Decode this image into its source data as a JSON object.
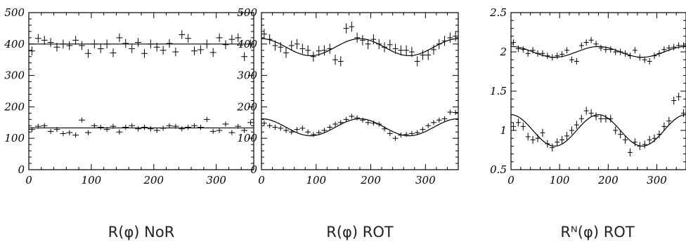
{
  "chart_data": [
    {
      "type": "scatter",
      "caption": "R(φ) NoR",
      "x_ticks": [
        "0",
        "100",
        "200",
        "300"
      ],
      "y_ticks": [
        "0",
        "100",
        "200",
        "300",
        "400",
        "500"
      ],
      "xlim": [
        0,
        360
      ],
      "ylim": [
        0,
        500
      ],
      "series": [
        {
          "x": [
            5,
            15,
            25,
            35,
            45,
            55,
            65,
            75,
            85,
            95,
            105,
            115,
            125,
            135,
            145,
            155,
            165,
            175,
            185,
            195,
            205,
            215,
            225,
            235,
            245,
            255,
            265,
            275,
            285,
            295,
            305,
            315,
            325,
            335,
            345,
            355
          ],
          "y": [
            378,
            418,
            412,
            405,
            390,
            400,
            395,
            412,
            395,
            370,
            400,
            385,
            400,
            372,
            420,
            402,
            385,
            405,
            370,
            400,
            390,
            380,
            402,
            375,
            430,
            418,
            378,
            382,
            400,
            373,
            420,
            398,
            415,
            420,
            360,
            400
          ],
          "err": [
            14,
            14,
            14,
            14,
            14,
            14,
            14,
            14,
            14,
            14,
            14,
            14,
            14,
            14,
            14,
            14,
            14,
            14,
            14,
            14,
            14,
            14,
            14,
            14,
            14,
            14,
            14,
            14,
            14,
            14,
            14,
            14,
            14,
            14,
            14,
            14
          ],
          "fit": {
            "a": 400,
            "b": 0
          }
        },
        {
          "x": [
            5,
            15,
            25,
            35,
            45,
            55,
            65,
            75,
            85,
            95,
            105,
            115,
            125,
            135,
            145,
            155,
            165,
            175,
            185,
            195,
            205,
            215,
            225,
            235,
            245,
            255,
            265,
            275,
            285,
            295,
            305,
            315,
            325,
            335,
            345,
            355
          ],
          "y": [
            128,
            138,
            140,
            122,
            128,
            115,
            118,
            110,
            158,
            118,
            140,
            135,
            128,
            138,
            120,
            135,
            140,
            130,
            135,
            130,
            125,
            132,
            140,
            138,
            130,
            135,
            140,
            135,
            160,
            122,
            125,
            145,
            118,
            138,
            125,
            150
          ],
          "err": [
            8,
            8,
            8,
            8,
            8,
            8,
            8,
            8,
            8,
            8,
            8,
            8,
            8,
            8,
            8,
            8,
            8,
            8,
            8,
            8,
            8,
            8,
            8,
            8,
            8,
            8,
            8,
            8,
            8,
            8,
            8,
            8,
            8,
            8,
            8,
            8
          ],
          "fit": {
            "a": 133,
            "b": 0
          }
        }
      ]
    },
    {
      "type": "scatter",
      "caption": "R(φ) ROT",
      "x_ticks": [
        "0",
        "100",
        "200",
        "300"
      ],
      "y_ticks": [
        "0",
        "100",
        "200",
        "300",
        "400",
        "500"
      ],
      "xlim": [
        0,
        360
      ],
      "ylim": [
        0,
        500
      ],
      "series": [
        {
          "x": [
            5,
            15,
            25,
            35,
            45,
            55,
            65,
            75,
            85,
            95,
            105,
            115,
            125,
            135,
            145,
            155,
            165,
            175,
            185,
            195,
            205,
            215,
            225,
            235,
            245,
            255,
            265,
            275,
            285,
            295,
            305,
            315,
            325,
            335,
            345,
            355
          ],
          "y": [
            432,
            415,
            395,
            390,
            372,
            395,
            400,
            385,
            380,
            360,
            378,
            380,
            385,
            350,
            345,
            450,
            455,
            420,
            412,
            400,
            415,
            400,
            390,
            398,
            385,
            380,
            380,
            375,
            345,
            365,
            365,
            382,
            400,
            410,
            420,
            425
          ],
          "err": [
            16,
            16,
            16,
            16,
            16,
            16,
            16,
            16,
            16,
            16,
            16,
            16,
            16,
            16,
            16,
            16,
            16,
            16,
            16,
            16,
            16,
            16,
            16,
            16,
            16,
            16,
            16,
            16,
            16,
            16,
            16,
            16,
            16,
            16,
            16,
            16
          ],
          "fit": {
            "a": 390,
            "b": 27
          }
        },
        {
          "x": [
            5,
            15,
            25,
            35,
            45,
            55,
            65,
            75,
            85,
            95,
            105,
            115,
            125,
            135,
            145,
            155,
            165,
            175,
            185,
            195,
            205,
            215,
            225,
            235,
            245,
            255,
            265,
            275,
            285,
            295,
            305,
            315,
            325,
            335,
            345,
            355
          ],
          "y": [
            148,
            140,
            135,
            132,
            125,
            120,
            128,
            132,
            120,
            112,
            118,
            125,
            135,
            145,
            150,
            160,
            170,
            165,
            158,
            150,
            148,
            145,
            130,
            115,
            100,
            110,
            112,
            115,
            118,
            128,
            140,
            150,
            158,
            162,
            183,
            182
          ],
          "err": [
            8,
            8,
            8,
            8,
            8,
            8,
            8,
            8,
            8,
            8,
            8,
            8,
            8,
            8,
            8,
            8,
            8,
            8,
            8,
            8,
            8,
            8,
            8,
            8,
            8,
            8,
            8,
            8,
            8,
            8,
            8,
            8,
            8,
            8,
            8,
            8
          ],
          "fit": {
            "a": 135,
            "b": 27
          }
        }
      ]
    },
    {
      "type": "scatter",
      "caption": "Rᴺ(φ) ROT",
      "x_ticks": [
        "0",
        "100",
        "200",
        "300"
      ],
      "y_ticks": [
        "0.5",
        "1",
        "1.5",
        "2",
        "2.5"
      ],
      "xlim": [
        0,
        360
      ],
      "ylim": [
        0.5,
        2.5
      ],
      "series": [
        {
          "x": [
            5,
            15,
            25,
            35,
            45,
            55,
            65,
            75,
            85,
            95,
            105,
            115,
            125,
            135,
            145,
            155,
            165,
            175,
            185,
            195,
            205,
            215,
            225,
            235,
            245,
            255,
            265,
            275,
            285,
            295,
            305,
            315,
            325,
            335,
            345,
            355
          ],
          "y": [
            2.12,
            2.04,
            2.03,
            1.98,
            2.02,
            1.98,
            1.98,
            1.95,
            1.93,
            1.95,
            1.97,
            2.02,
            1.9,
            1.88,
            2.08,
            2.12,
            2.15,
            2.1,
            2.05,
            2.03,
            2.03,
            2.0,
            2.0,
            1.98,
            1.95,
            2.02,
            1.93,
            1.9,
            1.88,
            1.95,
            1.98,
            2.03,
            2.05,
            2.06,
            2.08,
            2.08
          ],
          "err": [
            0.04,
            0.04,
            0.04,
            0.04,
            0.04,
            0.04,
            0.04,
            0.04,
            0.04,
            0.04,
            0.04,
            0.04,
            0.04,
            0.04,
            0.04,
            0.04,
            0.04,
            0.04,
            0.04,
            0.04,
            0.04,
            0.04,
            0.04,
            0.04,
            0.04,
            0.04,
            0.04,
            0.04,
            0.04,
            0.04,
            0.04,
            0.04,
            0.04,
            0.04,
            0.04,
            0.04
          ],
          "fit": {
            "a": 2.0,
            "b": 0.068
          }
        },
        {
          "x": [
            5,
            15,
            25,
            35,
            45,
            55,
            65,
            75,
            85,
            95,
            105,
            115,
            125,
            135,
            145,
            155,
            165,
            175,
            185,
            195,
            205,
            215,
            225,
            235,
            245,
            255,
            265,
            275,
            285,
            295,
            305,
            315,
            325,
            335,
            345,
            355
          ],
          "y": [
            1.05,
            1.1,
            1.05,
            0.92,
            0.88,
            0.9,
            0.97,
            0.83,
            0.78,
            0.85,
            0.88,
            0.93,
            1.0,
            1.07,
            1.15,
            1.25,
            1.22,
            1.18,
            1.15,
            1.15,
            1.15,
            1.0,
            0.95,
            0.88,
            0.72,
            0.85,
            0.8,
            0.82,
            0.88,
            0.9,
            0.95,
            1.05,
            1.12,
            1.38,
            1.43,
            1.22
          ],
          "err": [
            0.05,
            0.05,
            0.05,
            0.05,
            0.05,
            0.05,
            0.05,
            0.05,
            0.05,
            0.05,
            0.05,
            0.05,
            0.05,
            0.05,
            0.05,
            0.05,
            0.05,
            0.05,
            0.05,
            0.05,
            0.05,
            0.05,
            0.05,
            0.05,
            0.05,
            0.05,
            0.05,
            0.05,
            0.05,
            0.05,
            0.05,
            0.05,
            0.05,
            0.05,
            0.05,
            0.05
          ],
          "fit": {
            "a": 1.0,
            "b": 0.2
          }
        }
      ]
    }
  ]
}
